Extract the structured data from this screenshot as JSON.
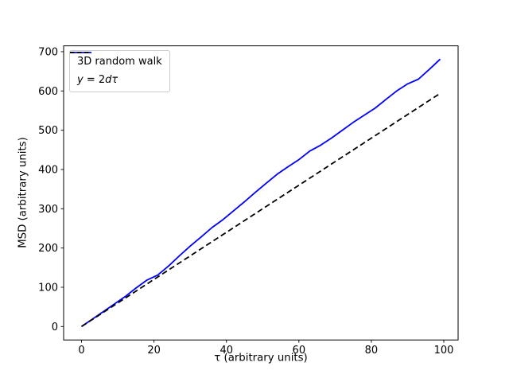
{
  "chart_data": {
    "type": "line",
    "title": "",
    "xlabel": "τ (arbitrary units)",
    "ylabel": "MSD (arbitrary units)",
    "xlim": [
      -4.95,
      103.95
    ],
    "ylim": [
      -34.2,
      714.9
    ],
    "x_ticks": [
      0,
      20,
      40,
      60,
      80,
      100
    ],
    "y_ticks": [
      0,
      100,
      200,
      300,
      400,
      500,
      600,
      700
    ],
    "grid": false,
    "legend_position": "upper left",
    "series": [
      {
        "name": "3D random walk",
        "color": "#0000ff",
        "style": "solid",
        "x": [
          0,
          3,
          6,
          9,
          12,
          15,
          18,
          21,
          24,
          27,
          30,
          33,
          36,
          39,
          42,
          45,
          48,
          51,
          54,
          57,
          60,
          63,
          66,
          69,
          72,
          75,
          78,
          81,
          84,
          87,
          90,
          93,
          96,
          99
        ],
        "y": [
          0,
          19,
          38,
          57,
          76,
          98,
          118,
          131,
          154,
          180,
          205,
          228,
          252,
          272,
          295,
          318,
          342,
          365,
          388,
          407,
          425,
          447,
          462,
          480,
          500,
          520,
          538,
          556,
          578,
          600,
          618,
          630,
          655,
          681
        ]
      },
      {
        "name": "y = 2dτ",
        "color": "#000000",
        "style": "dashed",
        "x": [
          0,
          99
        ],
        "y": [
          0,
          594
        ]
      }
    ]
  },
  "legend": {
    "item1_label": "3D random walk",
    "item2_y": "y",
    "item2_eq": " = 2",
    "item2_dtau": "dτ"
  }
}
